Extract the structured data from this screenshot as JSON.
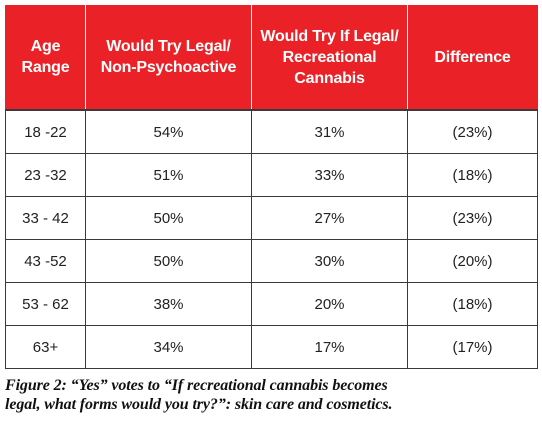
{
  "chart_data": {
    "type": "table",
    "columns": [
      {
        "lines": [
          "Age",
          "Range"
        ]
      },
      {
        "lines": [
          "Would Try Legal/",
          "Non-Psychoactive"
        ]
      },
      {
        "lines": [
          "Would Try If Legal/",
          "Recreational",
          "Cannabis"
        ]
      },
      {
        "lines": [
          "Difference"
        ]
      }
    ],
    "rows": [
      {
        "age": "18 -22",
        "legal": "54%",
        "recreational": "31%",
        "difference": "(23%)"
      },
      {
        "age": "23 -32",
        "legal": "51%",
        "recreational": "33%",
        "difference": "(18%)"
      },
      {
        "age": "33 - 42",
        "legal": "50%",
        "recreational": "27%",
        "difference": "(23%)"
      },
      {
        "age": "43 -52",
        "legal": "50%",
        "recreational": "30%",
        "difference": "(20%)"
      },
      {
        "age": "53 - 62",
        "legal": "38%",
        "recreational": "20%",
        "difference": "(18%)"
      },
      {
        "age": "63+",
        "legal": "34%",
        "recreational": "17%",
        "difference": "(17%)"
      }
    ],
    "caption_lines": [
      "Figure 2: “Yes” votes to “If recreational cannabis becomes",
      "legal, what forms would you try?”: skin care and cosmetics."
    ]
  },
  "colors": {
    "header_bg": "#ea2227",
    "header_text": "#ffffff",
    "grid": "#3a3a3a"
  }
}
